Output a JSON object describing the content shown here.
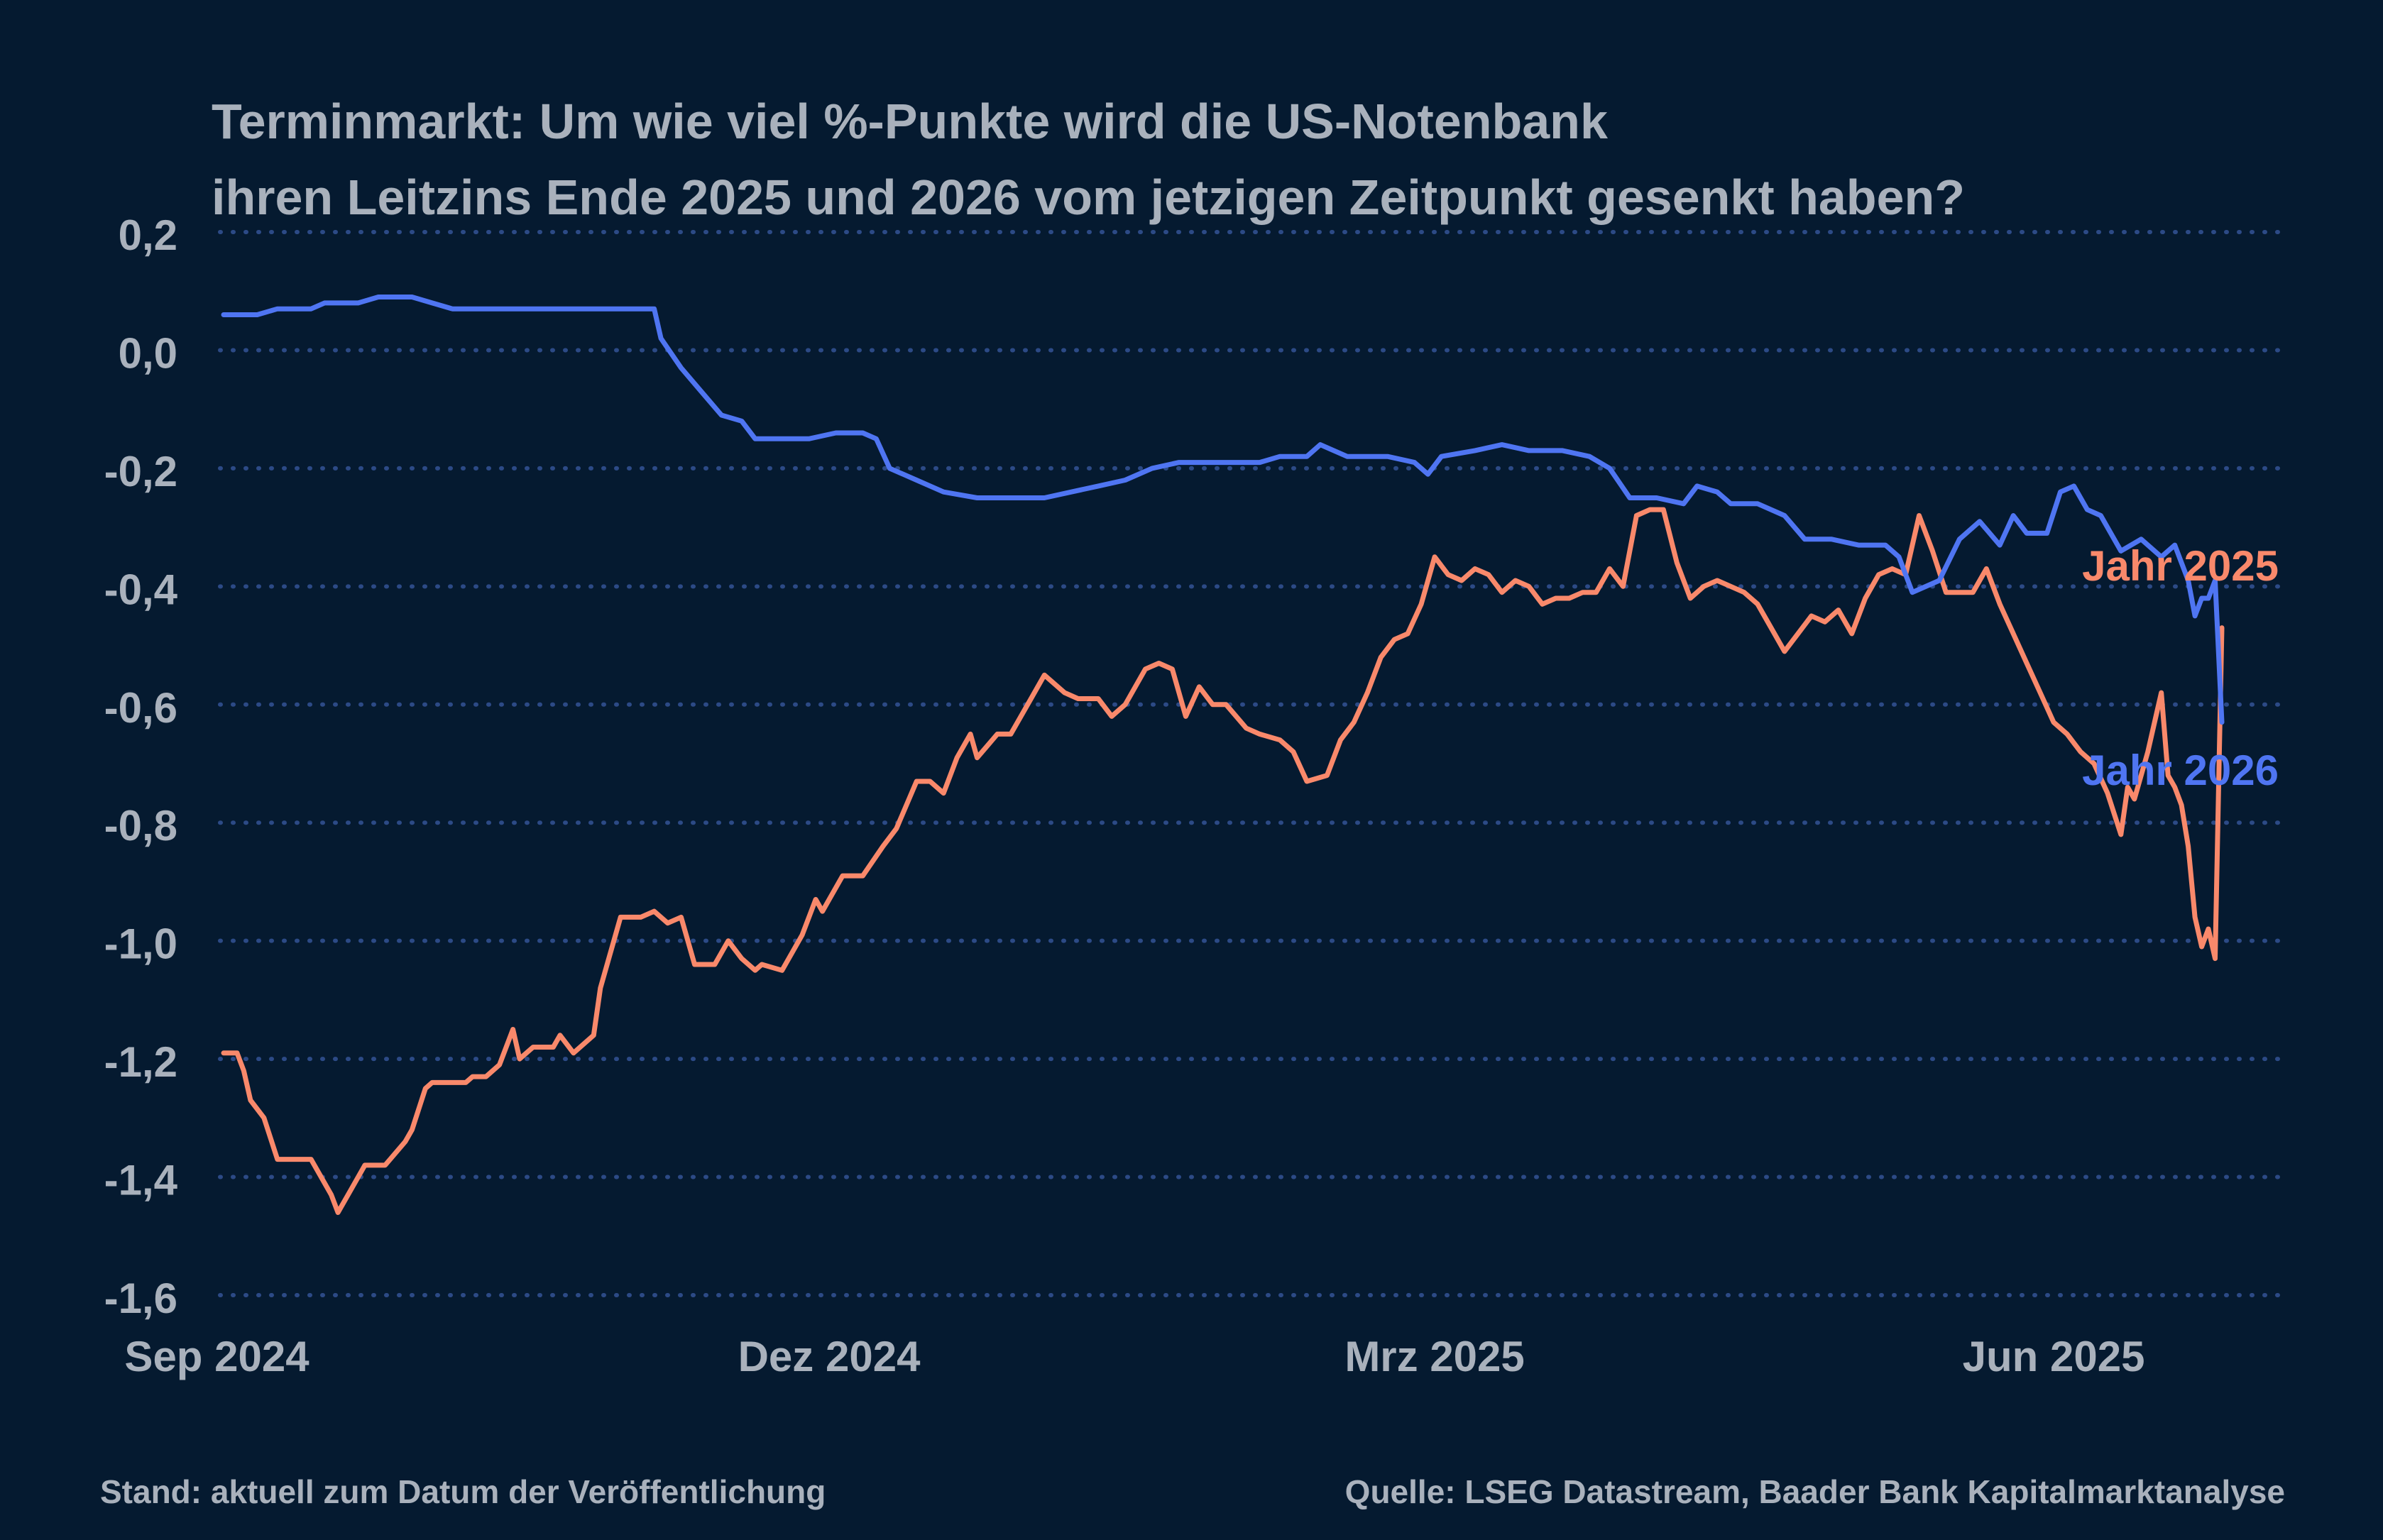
{
  "header": {
    "title_line1": "Terminmarkt: Um wie viel %-Punkte wird die US-Notenbank",
    "title_line2": "ihren Leitzins Ende 2025 und 2026 vom jetzigen Zeitpunkt gesenkt haben?"
  },
  "footer": {
    "left": "Stand: aktuell zum Datum der Veröffentlichung",
    "right": "Quelle: LSEG Datastream, Baader Bank Kapitalmarktanalyse"
  },
  "colors": {
    "background": "#051a30",
    "text": "#a9b1bc",
    "grid": "#2c4a86",
    "series_2025": "#f9896b",
    "series_2026": "#4f75f2"
  },
  "chart_data": {
    "type": "line",
    "title": "Terminmarkt: Um wie viel %-Punkte wird die US-Notenbank ihren Leitzins Ende 2025 und 2026 vom jetzigen Zeitpunkt gesenkt haben?",
    "xlabel": "",
    "ylabel": "",
    "x_range": [
      "2024-09-02",
      "2025-06-26"
    ],
    "x_ticks": [
      {
        "label": "Sep 2024",
        "date": "2024-09-01"
      },
      {
        "label": "Dez 2024",
        "date": "2024-12-01"
      },
      {
        "label": "Mrz 2025",
        "date": "2025-03-01"
      },
      {
        "label": "Jun 2025",
        "date": "2025-06-01"
      }
    ],
    "ylim": [
      -1.6,
      0.2
    ],
    "y_ticks": [
      0.2,
      0.0,
      -0.2,
      -0.4,
      -0.6,
      -0.8,
      -1.0,
      -1.2,
      -1.4,
      -1.6
    ],
    "y_tick_labels": [
      "0,2",
      "0,0",
      "-0,2",
      "-0,4",
      "-0,6",
      "-0,8",
      "-1,0",
      "-1,2",
      "-1,4",
      "-1,6"
    ],
    "grid": "horizontal dotted",
    "legend": "direct labels at line ends",
    "series": [
      {
        "name": "Jahr 2025",
        "color": "#f9896b",
        "points": [
          [
            "2024-09-02",
            -1.19
          ],
          [
            "2024-09-04",
            -1.19
          ],
          [
            "2024-09-05",
            -1.22
          ],
          [
            "2024-09-06",
            -1.27
          ],
          [
            "2024-09-08",
            -1.3
          ],
          [
            "2024-09-10",
            -1.37
          ],
          [
            "2024-09-12",
            -1.37
          ],
          [
            "2024-09-15",
            -1.37
          ],
          [
            "2024-09-18",
            -1.43
          ],
          [
            "2024-09-19",
            -1.46
          ],
          [
            "2024-09-21",
            -1.42
          ],
          [
            "2024-09-23",
            -1.38
          ],
          [
            "2024-09-26",
            -1.38
          ],
          [
            "2024-09-29",
            -1.34
          ],
          [
            "2024-09-30",
            -1.32
          ],
          [
            "2024-10-02",
            -1.25
          ],
          [
            "2024-10-03",
            -1.24
          ],
          [
            "2024-10-05",
            -1.24
          ],
          [
            "2024-10-08",
            -1.24
          ],
          [
            "2024-10-09",
            -1.23
          ],
          [
            "2024-10-11",
            -1.23
          ],
          [
            "2024-10-13",
            -1.21
          ],
          [
            "2024-10-15",
            -1.15
          ],
          [
            "2024-10-16",
            -1.2
          ],
          [
            "2024-10-18",
            -1.18
          ],
          [
            "2024-10-21",
            -1.18
          ],
          [
            "2024-10-22",
            -1.16
          ],
          [
            "2024-10-24",
            -1.19
          ],
          [
            "2024-10-27",
            -1.16
          ],
          [
            "2024-10-28",
            -1.08
          ],
          [
            "2024-10-31",
            -0.96
          ],
          [
            "2024-11-03",
            -0.96
          ],
          [
            "2024-11-05",
            -0.95
          ],
          [
            "2024-11-07",
            -0.97
          ],
          [
            "2024-11-09",
            -0.96
          ],
          [
            "2024-11-11",
            -1.04
          ],
          [
            "2024-11-14",
            -1.04
          ],
          [
            "2024-11-16",
            -1.0
          ],
          [
            "2024-11-18",
            -1.03
          ],
          [
            "2024-11-20",
            -1.05
          ],
          [
            "2024-11-21",
            -1.04
          ],
          [
            "2024-11-24",
            -1.05
          ],
          [
            "2024-11-27",
            -0.99
          ],
          [
            "2024-11-29",
            -0.93
          ],
          [
            "2024-11-30",
            -0.95
          ],
          [
            "2024-12-03",
            -0.89
          ],
          [
            "2024-12-06",
            -0.89
          ],
          [
            "2024-12-09",
            -0.84
          ],
          [
            "2024-12-11",
            -0.81
          ],
          [
            "2024-12-14",
            -0.73
          ],
          [
            "2024-12-16",
            -0.73
          ],
          [
            "2024-12-18",
            -0.75
          ],
          [
            "2024-12-20",
            -0.69
          ],
          [
            "2024-12-22",
            -0.65
          ],
          [
            "2024-12-23",
            -0.69
          ],
          [
            "2024-12-26",
            -0.65
          ],
          [
            "2024-12-28",
            -0.65
          ],
          [
            "2024-12-31",
            -0.59
          ],
          [
            "2025-01-02",
            -0.55
          ],
          [
            "2025-01-05",
            -0.58
          ],
          [
            "2025-01-07",
            -0.59
          ],
          [
            "2025-01-10",
            -0.59
          ],
          [
            "2025-01-12",
            -0.62
          ],
          [
            "2025-01-14",
            -0.6
          ],
          [
            "2025-01-17",
            -0.54
          ],
          [
            "2025-01-19",
            -0.53
          ],
          [
            "2025-01-21",
            -0.54
          ],
          [
            "2025-01-23",
            -0.62
          ],
          [
            "2025-01-25",
            -0.57
          ],
          [
            "2025-01-27",
            -0.6
          ],
          [
            "2025-01-29",
            -0.6
          ],
          [
            "2025-02-01",
            -0.64
          ],
          [
            "2025-02-03",
            -0.65
          ],
          [
            "2025-02-06",
            -0.66
          ],
          [
            "2025-02-08",
            -0.68
          ],
          [
            "2025-02-10",
            -0.73
          ],
          [
            "2025-02-13",
            -0.72
          ],
          [
            "2025-02-15",
            -0.66
          ],
          [
            "2025-02-17",
            -0.63
          ],
          [
            "2025-02-19",
            -0.58
          ],
          [
            "2025-02-21",
            -0.52
          ],
          [
            "2025-02-23",
            -0.49
          ],
          [
            "2025-02-25",
            -0.48
          ],
          [
            "2025-02-27",
            -0.43
          ],
          [
            "2025-03-01",
            -0.35
          ],
          [
            "2025-03-03",
            -0.38
          ],
          [
            "2025-03-05",
            -0.39
          ],
          [
            "2025-03-07",
            -0.37
          ],
          [
            "2025-03-09",
            -0.38
          ],
          [
            "2025-03-11",
            -0.41
          ],
          [
            "2025-03-13",
            -0.39
          ],
          [
            "2025-03-15",
            -0.4
          ],
          [
            "2025-03-17",
            -0.43
          ],
          [
            "2025-03-19",
            -0.42
          ],
          [
            "2025-03-21",
            -0.42
          ],
          [
            "2025-03-23",
            -0.41
          ],
          [
            "2025-03-25",
            -0.41
          ],
          [
            "2025-03-27",
            -0.37
          ],
          [
            "2025-03-29",
            -0.4
          ],
          [
            "2025-03-31",
            -0.28
          ],
          [
            "2025-04-02",
            -0.27
          ],
          [
            "2025-04-04",
            -0.27
          ],
          [
            "2025-04-06",
            -0.36
          ],
          [
            "2025-04-08",
            -0.42
          ],
          [
            "2025-04-10",
            -0.4
          ],
          [
            "2025-04-12",
            -0.39
          ],
          [
            "2025-04-14",
            -0.4
          ],
          [
            "2025-04-16",
            -0.41
          ],
          [
            "2025-04-18",
            -0.43
          ],
          [
            "2025-04-20",
            -0.47
          ],
          [
            "2025-04-22",
            -0.51
          ],
          [
            "2025-04-24",
            -0.48
          ],
          [
            "2025-04-26",
            -0.45
          ],
          [
            "2025-04-28",
            -0.46
          ],
          [
            "2025-04-30",
            -0.44
          ],
          [
            "2025-05-02",
            -0.48
          ],
          [
            "2025-05-04",
            -0.42
          ],
          [
            "2025-05-06",
            -0.38
          ],
          [
            "2025-05-08",
            -0.37
          ],
          [
            "2025-05-10",
            -0.38
          ],
          [
            "2025-05-12",
            -0.28
          ],
          [
            "2025-05-14",
            -0.34
          ],
          [
            "2025-05-16",
            -0.41
          ],
          [
            "2025-05-18",
            -0.41
          ],
          [
            "2025-05-20",
            -0.41
          ],
          [
            "2025-05-22",
            -0.37
          ],
          [
            "2025-05-24",
            -0.43
          ],
          [
            "2025-05-26",
            -0.48
          ],
          [
            "2025-05-28",
            -0.53
          ],
          [
            "2025-05-30",
            -0.58
          ],
          [
            "2025-06-01",
            -0.63
          ],
          [
            "2025-06-03",
            -0.65
          ],
          [
            "2025-06-05",
            -0.68
          ],
          [
            "2025-06-07",
            -0.7
          ],
          [
            "2025-06-09",
            -0.75
          ],
          [
            "2025-06-11",
            -0.82
          ],
          [
            "2025-06-12",
            -0.74
          ],
          [
            "2025-06-13",
            -0.76
          ],
          [
            "2025-06-15",
            -0.68
          ],
          [
            "2025-06-16",
            -0.63
          ],
          [
            "2025-06-17",
            -0.58
          ],
          [
            "2025-06-18",
            -0.72
          ],
          [
            "2025-06-19",
            -0.74
          ],
          [
            "2025-06-20",
            -0.77
          ],
          [
            "2025-06-21",
            -0.84
          ],
          [
            "2025-06-22",
            -0.96
          ],
          [
            "2025-06-23",
            -1.01
          ],
          [
            "2025-06-24",
            -0.98
          ],
          [
            "2025-06-25",
            -1.03
          ],
          [
            "2025-06-26",
            -0.47
          ]
        ]
      },
      {
        "name": "Jahr 2026",
        "color": "#4f75f2",
        "points": [
          [
            "2024-09-02",
            0.06
          ],
          [
            "2024-09-07",
            0.06
          ],
          [
            "2024-09-10",
            0.07
          ],
          [
            "2024-09-15",
            0.07
          ],
          [
            "2024-09-17",
            0.08
          ],
          [
            "2024-09-22",
            0.08
          ],
          [
            "2024-09-25",
            0.09
          ],
          [
            "2024-09-30",
            0.09
          ],
          [
            "2024-10-03",
            0.08
          ],
          [
            "2024-10-06",
            0.07
          ],
          [
            "2024-10-15",
            0.07
          ],
          [
            "2024-10-24",
            0.07
          ],
          [
            "2024-11-05",
            0.07
          ],
          [
            "2024-11-06",
            0.02
          ],
          [
            "2024-11-09",
            -0.03
          ],
          [
            "2024-11-12",
            -0.07
          ],
          [
            "2024-11-15",
            -0.11
          ],
          [
            "2024-11-18",
            -0.12
          ],
          [
            "2024-11-20",
            -0.15
          ],
          [
            "2024-11-24",
            -0.15
          ],
          [
            "2024-11-28",
            -0.15
          ],
          [
            "2024-12-02",
            -0.14
          ],
          [
            "2024-12-06",
            -0.14
          ],
          [
            "2024-12-08",
            -0.15
          ],
          [
            "2024-12-10",
            -0.2
          ],
          [
            "2024-12-14",
            -0.22
          ],
          [
            "2024-12-18",
            -0.24
          ],
          [
            "2024-12-23",
            -0.25
          ],
          [
            "2024-12-28",
            -0.25
          ],
          [
            "2025-01-02",
            -0.25
          ],
          [
            "2025-01-06",
            -0.24
          ],
          [
            "2025-01-10",
            -0.23
          ],
          [
            "2025-01-14",
            -0.22
          ],
          [
            "2025-01-18",
            -0.2
          ],
          [
            "2025-01-22",
            -0.19
          ],
          [
            "2025-01-28",
            -0.19
          ],
          [
            "2025-02-03",
            -0.19
          ],
          [
            "2025-02-06",
            -0.18
          ],
          [
            "2025-02-10",
            -0.18
          ],
          [
            "2025-02-12",
            -0.16
          ],
          [
            "2025-02-16",
            -0.18
          ],
          [
            "2025-02-22",
            -0.18
          ],
          [
            "2025-02-26",
            -0.19
          ],
          [
            "2025-02-28",
            -0.21
          ],
          [
            "2025-03-02",
            -0.18
          ],
          [
            "2025-03-07",
            -0.17
          ],
          [
            "2025-03-11",
            -0.16
          ],
          [
            "2025-03-15",
            -0.17
          ],
          [
            "2025-03-20",
            -0.17
          ],
          [
            "2025-03-24",
            -0.18
          ],
          [
            "2025-03-27",
            -0.2
          ],
          [
            "2025-03-30",
            -0.25
          ],
          [
            "2025-04-03",
            -0.25
          ],
          [
            "2025-04-07",
            -0.26
          ],
          [
            "2025-04-09",
            -0.23
          ],
          [
            "2025-04-12",
            -0.24
          ],
          [
            "2025-04-14",
            -0.26
          ],
          [
            "2025-04-18",
            -0.26
          ],
          [
            "2025-04-22",
            -0.28
          ],
          [
            "2025-04-25",
            -0.32
          ],
          [
            "2025-04-29",
            -0.32
          ],
          [
            "2025-05-03",
            -0.33
          ],
          [
            "2025-05-07",
            -0.33
          ],
          [
            "2025-05-09",
            -0.35
          ],
          [
            "2025-05-11",
            -0.41
          ],
          [
            "2025-05-15",
            -0.39
          ],
          [
            "2025-05-18",
            -0.32
          ],
          [
            "2025-05-21",
            -0.29
          ],
          [
            "2025-05-24",
            -0.33
          ],
          [
            "2025-05-26",
            -0.28
          ],
          [
            "2025-05-28",
            -0.31
          ],
          [
            "2025-05-31",
            -0.31
          ],
          [
            "2025-06-02",
            -0.24
          ],
          [
            "2025-06-04",
            -0.23
          ],
          [
            "2025-06-06",
            -0.27
          ],
          [
            "2025-06-08",
            -0.28
          ],
          [
            "2025-06-11",
            -0.34
          ],
          [
            "2025-06-14",
            -0.32
          ],
          [
            "2025-06-17",
            -0.35
          ],
          [
            "2025-06-19",
            -0.33
          ],
          [
            "2025-06-21",
            -0.39
          ],
          [
            "2025-06-22",
            -0.45
          ],
          [
            "2025-06-23",
            -0.42
          ],
          [
            "2025-06-24",
            -0.42
          ],
          [
            "2025-06-25",
            -0.39
          ],
          [
            "2025-06-26",
            -0.63
          ]
        ]
      }
    ]
  }
}
